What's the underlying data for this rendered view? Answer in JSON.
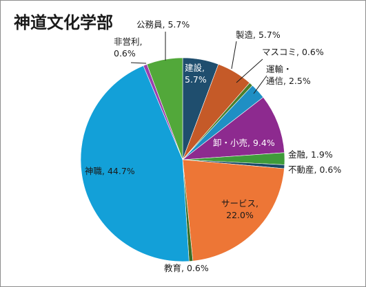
{
  "chart_data": {
    "type": "pie",
    "title": "神道文化学部",
    "start_angle_deg": 0,
    "direction": "clockwise",
    "slices": [
      {
        "label": "建設",
        "value_text": "5.7%",
        "value": 5.7,
        "color": "#1f4e6e"
      },
      {
        "label": "製造",
        "value_text": "5.7%",
        "value": 5.7,
        "color": "#c55a28"
      },
      {
        "label": "マスコミ",
        "value_text": "0.6%",
        "value": 0.6,
        "color": "#4a7f2e"
      },
      {
        "label": "運輸・通信",
        "value_text": "2.5%",
        "value": 2.5,
        "color": "#1f8fc4"
      },
      {
        "label": "卸・小売",
        "value_text": "9.4%",
        "value": 9.4,
        "color": "#8d2a8f"
      },
      {
        "label": "金融",
        "value_text": "1.9%",
        "value": 1.9,
        "color": "#3f9b3a"
      },
      {
        "label": "不動産",
        "value_text": "0.6%",
        "value": 0.6,
        "color": "#1c4a68"
      },
      {
        "label": "サービス",
        "value_text": "22.0%",
        "value": 22.0,
        "color": "#ed7636"
      },
      {
        "label": "教育",
        "value_text": "0.6%",
        "value": 0.6,
        "color": "#3a6e27"
      },
      {
        "label": "神職",
        "value_text": "44.7%",
        "value": 44.7,
        "color": "#13a0d8"
      },
      {
        "label": "非営利",
        "value_text": "0.6%",
        "value": 0.6,
        "color": "#9b3fae"
      },
      {
        "label": "公務員",
        "value_text": "5.7%",
        "value": 5.7,
        "color": "#52a83a"
      }
    ]
  }
}
